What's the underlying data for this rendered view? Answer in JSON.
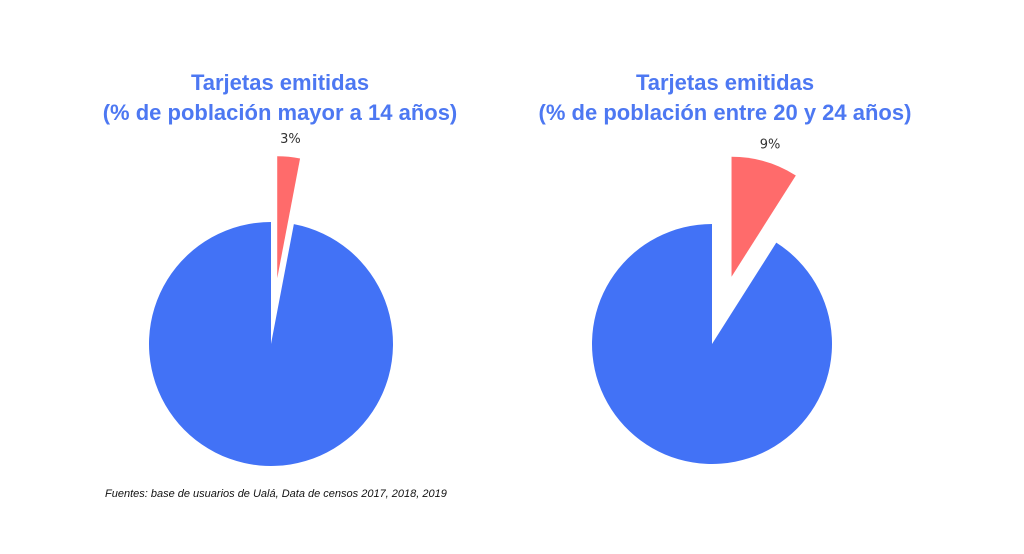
{
  "chart_data": [
    {
      "type": "pie",
      "title": [
        "Tarjetas emitidas",
        "(% de población mayor a 14 años)"
      ],
      "slices": [
        {
          "label": "3%",
          "value": 3,
          "color": "#ff6b6b",
          "exploded": true
        },
        {
          "label": "",
          "value": 97,
          "color": "#4272f6",
          "exploded": false
        }
      ]
    },
    {
      "type": "pie",
      "title": [
        "Tarjetas emitidas",
        "(% de población entre 20 y 24 años)"
      ],
      "slices": [
        {
          "label": "9%",
          "value": 9,
          "color": "#ff6b6b",
          "exploded": true
        },
        {
          "label": "",
          "value": 91,
          "color": "#4272f6",
          "exploded": false
        }
      ]
    }
  ],
  "source": "Fuentes: base de usuarios de Ualá, Data de censos 2017, 2018, 2019"
}
